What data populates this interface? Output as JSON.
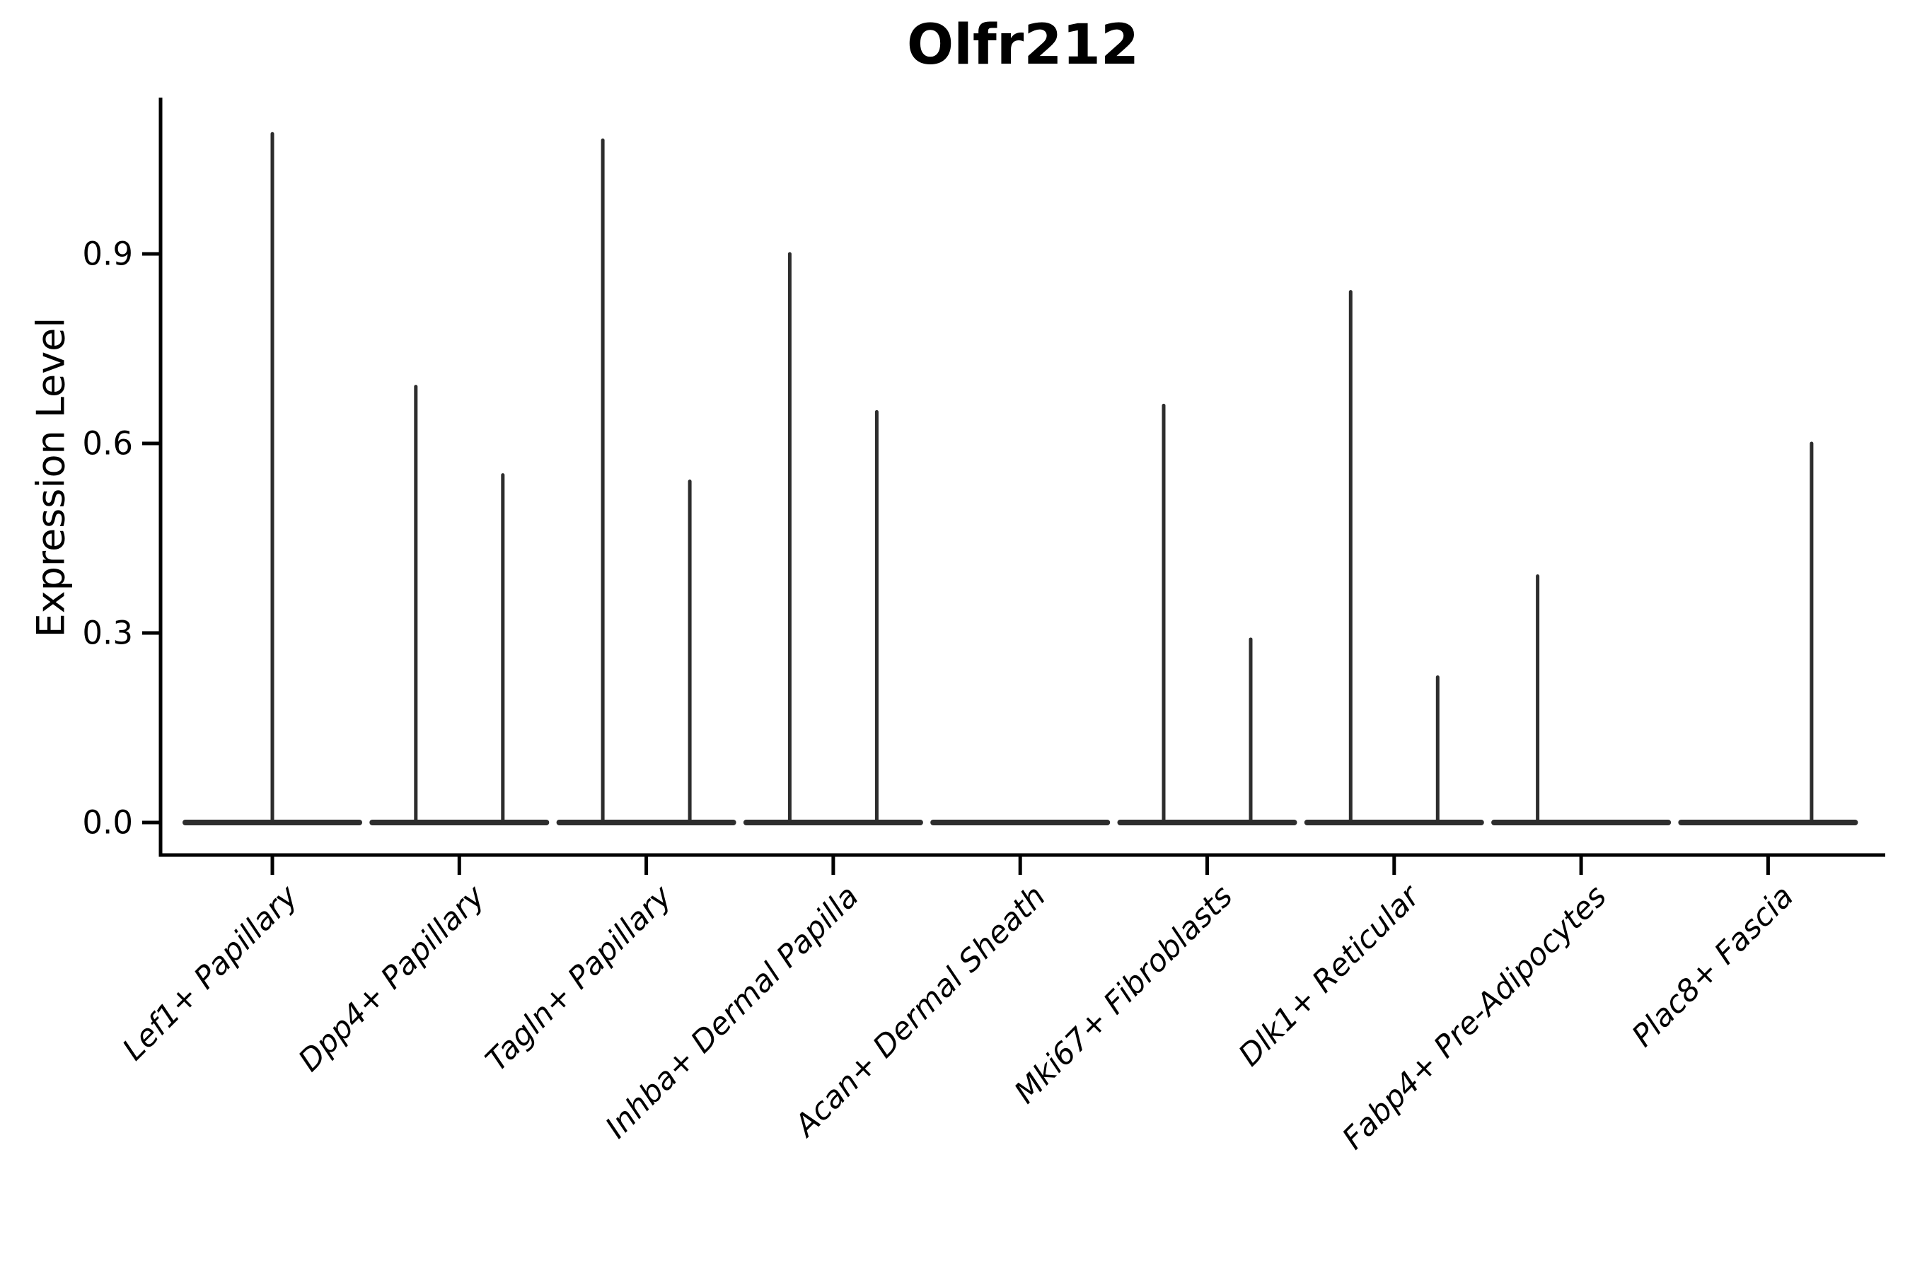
{
  "figure": {
    "title": "Olfr212"
  },
  "axes": {
    "ylabel": "Expression Level",
    "ytick_labels": [
      "0.0",
      "0.3",
      "0.6",
      "0.9"
    ]
  },
  "colors": {
    "violin_stroke": "#2d2d2d",
    "axis": "#000000",
    "background": "#ffffff"
  },
  "chart_data": {
    "type": "violin",
    "title": "Olfr212",
    "xlabel": "",
    "ylabel": "Expression Level",
    "ylim": [
      -0.052,
      1.147
    ],
    "yticks": [
      0.0,
      0.3,
      0.6,
      0.9
    ],
    "grid": false,
    "legend": null,
    "note": "Seurat-style single-gene violin plot; expression concentrated at 0 (flat violin base) with thin spikes reaching the listed maximum expression values. Spike position is the horizontal placement within the category slot (-1 = left half, 0 = center, 1 = right half).",
    "categories": [
      "Lef1+ Papillary",
      "Dpp4+ Papillary",
      "Tagln+ Papillary",
      "Inhba+ Dermal Papilla",
      "Acan+ Dermal Sheath",
      "Mki67+ Fibroblasts",
      "Dlk1+ Reticular",
      "Fabp4+ Pre-Adipocytes",
      "Plac8+ Fascia"
    ],
    "series": [
      {
        "category": "Lef1+ Papillary",
        "baseline_at_zero": true,
        "spikes": [
          {
            "position": 0,
            "max": 1.09
          }
        ]
      },
      {
        "category": "Dpp4+ Papillary",
        "baseline_at_zero": true,
        "spikes": [
          {
            "position": -1,
            "max": 0.69
          },
          {
            "position": 1,
            "max": 0.55
          }
        ]
      },
      {
        "category": "Tagln+ Papillary",
        "baseline_at_zero": true,
        "spikes": [
          {
            "position": -1,
            "max": 1.08
          },
          {
            "position": 1,
            "max": 0.54
          }
        ]
      },
      {
        "category": "Inhba+ Dermal Papilla",
        "baseline_at_zero": true,
        "spikes": [
          {
            "position": -1,
            "max": 0.9
          },
          {
            "position": 1,
            "max": 0.65
          }
        ]
      },
      {
        "category": "Acan+ Dermal Sheath",
        "baseline_at_zero": true,
        "spikes": []
      },
      {
        "category": "Mki67+ Fibroblasts",
        "baseline_at_zero": true,
        "spikes": [
          {
            "position": -1,
            "max": 0.66
          },
          {
            "position": 1,
            "max": 0.29
          }
        ]
      },
      {
        "category": "Dlk1+ Reticular",
        "baseline_at_zero": true,
        "spikes": [
          {
            "position": -1,
            "max": 0.84
          },
          {
            "position": 1,
            "max": 0.23
          }
        ]
      },
      {
        "category": "Fabp4+ Pre-Adipocytes",
        "baseline_at_zero": true,
        "spikes": [
          {
            "position": -1,
            "max": 0.39
          }
        ]
      },
      {
        "category": "Plac8+ Fascia",
        "baseline_at_zero": true,
        "spikes": [
          {
            "position": 1,
            "max": 0.6
          }
        ]
      }
    ]
  }
}
